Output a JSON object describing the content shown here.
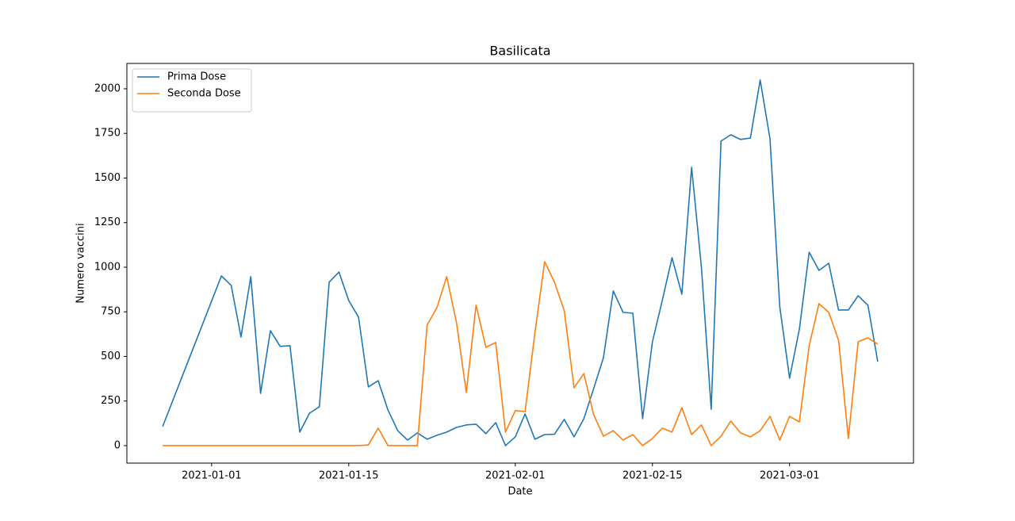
{
  "chart_data": {
    "type": "line",
    "title": "Basilicata",
    "xlabel": "Date",
    "ylabel": "Numero vaccini",
    "x": [
      "2020-12-27",
      "2021-01-02",
      "2021-01-03",
      "2021-01-04",
      "2021-01-05",
      "2021-01-06",
      "2021-01-07",
      "2021-01-08",
      "2021-01-09",
      "2021-01-10",
      "2021-01-11",
      "2021-01-12",
      "2021-01-13",
      "2021-01-14",
      "2021-01-15",
      "2021-01-16",
      "2021-01-17",
      "2021-01-18",
      "2021-01-19",
      "2021-01-20",
      "2021-01-21",
      "2021-01-22",
      "2021-01-23",
      "2021-01-24",
      "2021-01-25",
      "2021-01-26",
      "2021-01-27",
      "2021-01-28",
      "2021-01-29",
      "2021-01-30",
      "2021-01-31",
      "2021-02-01",
      "2021-02-02",
      "2021-02-03",
      "2021-02-04",
      "2021-02-05",
      "2021-02-06",
      "2021-02-07",
      "2021-02-08",
      "2021-02-09",
      "2021-02-10",
      "2021-02-11",
      "2021-02-12",
      "2021-02-13",
      "2021-02-14",
      "2021-02-15",
      "2021-02-16",
      "2021-02-17",
      "2021-02-18",
      "2021-02-19",
      "2021-02-20",
      "2021-02-21",
      "2021-02-22",
      "2021-02-23",
      "2021-02-24",
      "2021-02-25",
      "2021-02-26",
      "2021-02-27",
      "2021-02-28",
      "2021-03-01",
      "2021-03-02",
      "2021-03-03",
      "2021-03-04",
      "2021-03-05",
      "2021-03-06",
      "2021-03-07",
      "2021-03-08",
      "2021-03-09",
      "2021-03-10"
    ],
    "series": [
      {
        "name": "Prima Dose",
        "color": "#1f77b4",
        "values": [
          107,
          951,
          898,
          609,
          947,
          293,
          644,
          556,
          560,
          76,
          182,
          218,
          916,
          973,
          813,
          720,
          329,
          364,
          200,
          84,
          31,
          71,
          36,
          58,
          76,
          102,
          116,
          120,
          67,
          129,
          0,
          49,
          178,
          36,
          62,
          64,
          147,
          49,
          151,
          320,
          493,
          867,
          747,
          742,
          151,
          582,
          813,
          1053,
          849,
          1560,
          1000,
          204,
          1707,
          1742,
          1716,
          1724,
          2049,
          1720,
          778,
          378,
          653,
          1084,
          982,
          1022,
          760,
          760,
          840,
          787,
          471
        ]
      },
      {
        "name": "Seconda Dose",
        "color": "#ff7f0e",
        "values": [
          0,
          0,
          0,
          0,
          0,
          0,
          0,
          0,
          0,
          0,
          0,
          0,
          0,
          0,
          0,
          0,
          4,
          98,
          0,
          0,
          0,
          0,
          676,
          773,
          947,
          689,
          298,
          787,
          551,
          578,
          76,
          196,
          191,
          631,
          1031,
          916,
          756,
          324,
          404,
          173,
          53,
          84,
          31,
          62,
          0,
          40,
          98,
          76,
          213,
          62,
          116,
          0,
          53,
          138,
          71,
          49,
          84,
          164,
          31,
          164,
          133,
          560,
          796,
          747,
          591,
          40,
          582,
          604,
          569
        ]
      }
    ],
    "xlim": [
      "2020-12-23T08:24Z",
      "2021-03-13T15:36Z"
    ],
    "xticks": [
      "2021-01-01",
      "2021-01-15",
      "2021-02-01",
      "2021-02-15",
      "2021-03-01"
    ],
    "ylim": [
      -98,
      2142
    ],
    "yticks": [
      0,
      250,
      500,
      750,
      1000,
      1250,
      1500,
      1750,
      2000
    ],
    "legend": "upper left",
    "grid": false
  }
}
